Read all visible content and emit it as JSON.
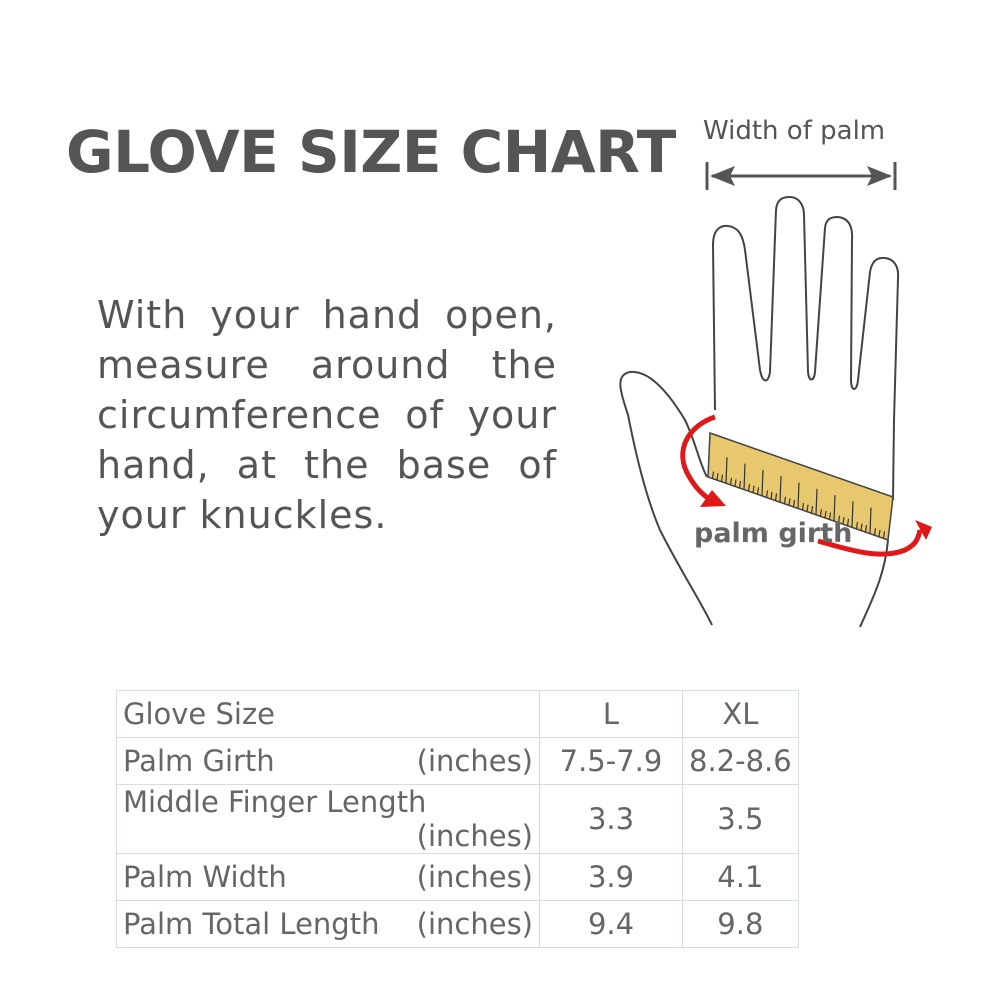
{
  "title": "GLOVE SIZE CHART",
  "instructions": {
    "lines": [
      "With your hand open,",
      "measure around the",
      "circumference of your",
      "hand, at the base of",
      "your knuckles."
    ]
  },
  "diagram": {
    "width_label": "Width of palm",
    "girth_label": "palm girth",
    "colors": {
      "arrow": "#e01818",
      "tape": "#e8c86e",
      "outline": "#444444"
    }
  },
  "table": {
    "header": {
      "label": "Glove Size",
      "sizes": [
        "L",
        "XL"
      ]
    },
    "rows": [
      {
        "label": "Palm Girth",
        "unit": "(inches)",
        "values": [
          "7.5-7.9",
          "8.2-8.6"
        ]
      },
      {
        "label": "Middle Finger Length",
        "unit": "(inches)",
        "values": [
          "3.3",
          "3.5"
        ]
      },
      {
        "label": "Palm Width",
        "unit": "(inches)",
        "values": [
          "3.9",
          "4.1"
        ]
      },
      {
        "label": "Palm Total Length",
        "unit": "(inches)",
        "values": [
          "9.4",
          "9.8"
        ]
      }
    ]
  }
}
